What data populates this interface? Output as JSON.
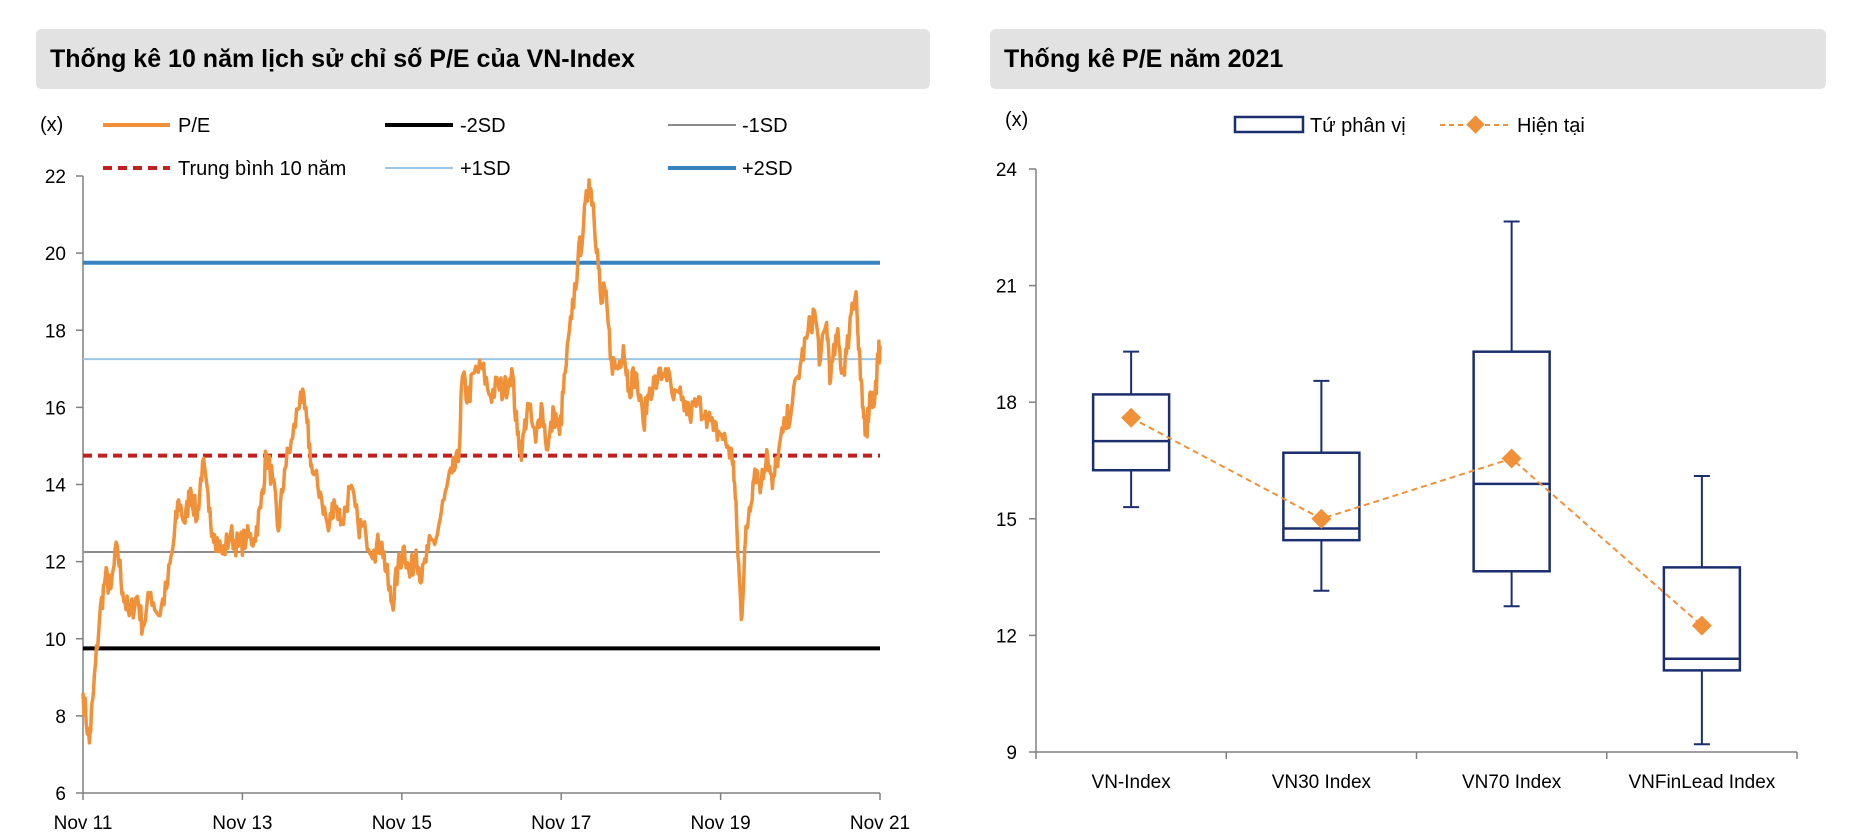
{
  "left_panel": {
    "title": "Thống kê 10 năm lịch sử chỉ số P/E của VN-Index"
  },
  "right_panel": {
    "title": "Thống kê P/E năm 2021"
  },
  "chart_data": [
    {
      "type": "line",
      "title": "Thống kê 10 năm lịch sử chỉ số P/E của VN-Index",
      "ylabel": "(x)",
      "ylim": [
        6,
        22
      ],
      "yticks": [
        "22",
        "20",
        "18",
        "16",
        "14",
        "12",
        "10",
        "8",
        "6"
      ],
      "xticks": [
        "Nov 11",
        "Nov 13",
        "Nov 15",
        "Nov 17",
        "Nov 19",
        "Nov 21"
      ],
      "xrange": [
        2011.87,
        2021.87
      ],
      "legend": [
        "P/E",
        "-2SD",
        "-1SD",
        "Trung bình 10 năm",
        "+1SD",
        "+2SD"
      ],
      "colors": {
        "pe": "#f0913a",
        "minus2sd": "#000000",
        "minus1sd": "#8c8c8c",
        "mean": "#c0201e",
        "plus1sd": "#9cc6e6",
        "plus2sd": "#3783bf"
      },
      "reference_lines": {
        "minus2sd": 9.75,
        "minus1sd": 12.25,
        "mean": 14.75,
        "plus1sd": 17.25,
        "plus2sd": 19.75
      },
      "pe_series": [
        [
          2011.87,
          8.6
        ],
        [
          2011.95,
          7.3
        ],
        [
          2012.0,
          8.6
        ],
        [
          2012.08,
          10.6
        ],
        [
          2012.15,
          11.6
        ],
        [
          2012.22,
          11.3
        ],
        [
          2012.3,
          12.4
        ],
        [
          2012.37,
          11.2
        ],
        [
          2012.45,
          10.6
        ],
        [
          2012.55,
          11.1
        ],
        [
          2012.62,
          10.3
        ],
        [
          2012.72,
          11.2
        ],
        [
          2012.82,
          10.6
        ],
        [
          2012.92,
          11.3
        ],
        [
          2013.0,
          12.4
        ],
        [
          2013.07,
          13.6
        ],
        [
          2013.15,
          13.0
        ],
        [
          2013.22,
          13.9
        ],
        [
          2013.3,
          13.1
        ],
        [
          2013.37,
          14.6
        ],
        [
          2013.45,
          13.3
        ],
        [
          2013.52,
          12.7
        ],
        [
          2013.62,
          12.2
        ],
        [
          2013.72,
          12.7
        ],
        [
          2013.82,
          12.4
        ],
        [
          2013.92,
          12.6
        ],
        [
          2014.02,
          12.6
        ],
        [
          2014.1,
          13.4
        ],
        [
          2014.17,
          14.8
        ],
        [
          2014.25,
          14.1
        ],
        [
          2014.32,
          12.8
        ],
        [
          2014.4,
          14.4
        ],
        [
          2014.5,
          15.2
        ],
        [
          2014.6,
          16.4
        ],
        [
          2014.68,
          15.6
        ],
        [
          2014.75,
          14.3
        ],
        [
          2014.85,
          13.8
        ],
        [
          2014.95,
          12.8
        ],
        [
          2015.02,
          13.6
        ],
        [
          2015.12,
          13.0
        ],
        [
          2015.22,
          13.9
        ],
        [
          2015.32,
          13.0
        ],
        [
          2015.42,
          12.7
        ],
        [
          2015.52,
          12.3
        ],
        [
          2015.62,
          12.5
        ],
        [
          2015.7,
          11.4
        ],
        [
          2015.75,
          10.9
        ],
        [
          2015.82,
          11.8
        ],
        [
          2015.9,
          12.4
        ],
        [
          2015.97,
          11.6
        ],
        [
          2016.05,
          12.3
        ],
        [
          2016.12,
          11.5
        ],
        [
          2016.2,
          12.3
        ],
        [
          2016.3,
          12.6
        ],
        [
          2016.4,
          13.6
        ],
        [
          2016.5,
          14.3
        ],
        [
          2016.58,
          14.6
        ],
        [
          2016.63,
          16.8
        ],
        [
          2016.7,
          16.2
        ],
        [
          2016.78,
          16.9
        ],
        [
          2016.88,
          17.0
        ],
        [
          2016.98,
          16.3
        ],
        [
          2017.08,
          16.6
        ],
        [
          2017.15,
          16.4
        ],
        [
          2017.25,
          17.0
        ],
        [
          2017.32,
          15.3
        ],
        [
          2017.38,
          14.9
        ],
        [
          2017.45,
          16.1
        ],
        [
          2017.55,
          15.1
        ],
        [
          2017.62,
          16.1
        ],
        [
          2017.7,
          14.9
        ],
        [
          2017.78,
          15.9
        ],
        [
          2017.85,
          15.3
        ],
        [
          2017.92,
          16.9
        ],
        [
          2018.0,
          18.3
        ],
        [
          2018.08,
          19.8
        ],
        [
          2018.15,
          20.7
        ],
        [
          2018.22,
          21.9
        ],
        [
          2018.27,
          21.3
        ],
        [
          2018.32,
          20.1
        ],
        [
          2018.37,
          18.7
        ],
        [
          2018.42,
          19.0
        ],
        [
          2018.5,
          17.2
        ],
        [
          2018.58,
          17.0
        ],
        [
          2018.65,
          17.6
        ],
        [
          2018.72,
          16.5
        ],
        [
          2018.8,
          16.9
        ],
        [
          2018.9,
          15.6
        ],
        [
          2018.98,
          16.5
        ],
        [
          2019.08,
          16.7
        ],
        [
          2019.18,
          17.0
        ],
        [
          2019.28,
          16.2
        ],
        [
          2019.38,
          16.2
        ],
        [
          2019.48,
          15.8
        ],
        [
          2019.58,
          16.1
        ],
        [
          2019.68,
          15.9
        ],
        [
          2019.78,
          15.4
        ],
        [
          2019.88,
          15.3
        ],
        [
          2019.96,
          15.0
        ],
        [
          2020.03,
          14.6
        ],
        [
          2020.08,
          12.6
        ],
        [
          2020.13,
          10.5
        ],
        [
          2020.18,
          12.5
        ],
        [
          2020.23,
          13.4
        ],
        [
          2020.3,
          14.4
        ],
        [
          2020.38,
          14.0
        ],
        [
          2020.45,
          14.9
        ],
        [
          2020.52,
          13.9
        ],
        [
          2020.6,
          14.9
        ],
        [
          2020.68,
          15.5
        ],
        [
          2020.77,
          16.1
        ],
        [
          2020.87,
          17.1
        ],
        [
          2020.95,
          17.8
        ],
        [
          2021.05,
          18.5
        ],
        [
          2021.12,
          17.2
        ],
        [
          2021.2,
          18.2
        ],
        [
          2021.25,
          16.7
        ],
        [
          2021.33,
          17.9
        ],
        [
          2021.4,
          16.9
        ],
        [
          2021.45,
          17.4
        ],
        [
          2021.52,
          18.7
        ],
        [
          2021.57,
          19.0
        ],
        [
          2021.6,
          17.5
        ],
        [
          2021.65,
          16.0
        ],
        [
          2021.7,
          15.4
        ],
        [
          2021.75,
          16.4
        ],
        [
          2021.8,
          16.1
        ],
        [
          2021.85,
          17.3
        ],
        [
          2021.87,
          17.6
        ]
      ]
    },
    {
      "type": "box",
      "title": "Thống kê P/E năm 2021",
      "ylabel": "(x)",
      "ylim": [
        9,
        24
      ],
      "yticks": [
        "24",
        "21",
        "18",
        "15",
        "12",
        "9"
      ],
      "legend": [
        "Tứ phân vị",
        "Hiện tại"
      ],
      "colors": {
        "box": "#1b2f6e",
        "current": "#f0913a"
      },
      "categories": [
        "VN-Index",
        "VN30 Index",
        "VN70 Index",
        "VNFinLead Index"
      ],
      "boxes": [
        {
          "min": 15.3,
          "q1": 16.25,
          "median": 17.0,
          "q3": 18.2,
          "max": 19.3
        },
        {
          "min": 13.15,
          "q1": 14.45,
          "median": 14.75,
          "q3": 16.7,
          "max": 18.55
        },
        {
          "min": 12.75,
          "q1": 13.65,
          "median": 15.9,
          "q3": 19.3,
          "max": 22.65
        },
        {
          "min": 9.2,
          "q1": 11.1,
          "median": 11.4,
          "q3": 13.75,
          "max": 16.1
        }
      ],
      "current": [
        17.6,
        15.0,
        16.55,
        12.25
      ]
    }
  ]
}
